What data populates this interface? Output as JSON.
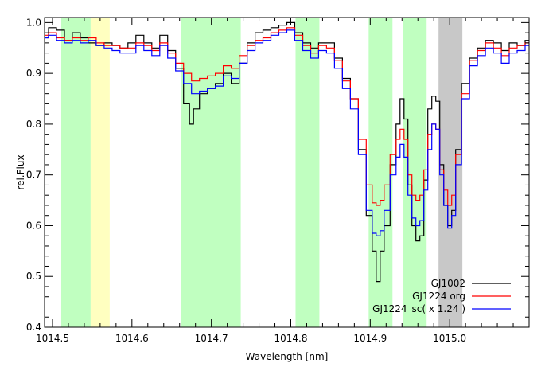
{
  "chart_data": {
    "type": "line",
    "xlabel": "Wavelength [nm]",
    "ylabel": "rel.Flux",
    "xlim": [
      1014.49,
      1015.1
    ],
    "ylim": [
      0.4,
      1.01
    ],
    "xticks": [
      1014.5,
      1014.6,
      1014.7,
      1014.8,
      1014.9,
      1015.0
    ],
    "xtick_labels": [
      "1014.5",
      "1014.6",
      "1014.7",
      "1014.8",
      "1014.9",
      "1015.0"
    ],
    "yticks": [
      0.4,
      0.5,
      0.6,
      0.7,
      0.8,
      0.9,
      1.0
    ],
    "ytick_labels": [
      "0.4",
      "0.5",
      "0.6",
      "0.7",
      "0.8",
      "0.9",
      "1.0"
    ],
    "grid": false,
    "legend_position": "bottom-right",
    "bands": [
      {
        "x0": 1014.511,
        "x1": 1014.548,
        "color": "#c0ffc0"
      },
      {
        "x0": 1014.548,
        "x1": 1014.572,
        "color": "#ffffc0"
      },
      {
        "x0": 1014.662,
        "x1": 1014.737,
        "color": "#c0ffc0"
      },
      {
        "x0": 1014.806,
        "x1": 1014.836,
        "color": "#c0ffc0"
      },
      {
        "x0": 1014.898,
        "x1": 1014.928,
        "color": "#c0ffc0"
      },
      {
        "x0": 1014.941,
        "x1": 1014.971,
        "color": "#c0ffc0"
      },
      {
        "x0": 1014.986,
        "x1": 1015.016,
        "color": "#c8c8c8"
      }
    ],
    "series": [
      {
        "name": "GJ1002",
        "color": "#000000",
        "points": [
          [
            1014.49,
            0.97
          ],
          [
            1014.5,
            0.99
          ],
          [
            1014.51,
            0.985
          ],
          [
            1014.52,
            0.965
          ],
          [
            1014.53,
            0.98
          ],
          [
            1014.54,
            0.97
          ],
          [
            1014.55,
            0.96
          ],
          [
            1014.56,
            0.955
          ],
          [
            1014.57,
            0.96
          ],
          [
            1014.58,
            0.955
          ],
          [
            1014.59,
            0.95
          ],
          [
            1014.6,
            0.96
          ],
          [
            1014.61,
            0.975
          ],
          [
            1014.62,
            0.96
          ],
          [
            1014.63,
            0.95
          ],
          [
            1014.64,
            0.975
          ],
          [
            1014.65,
            0.945
          ],
          [
            1014.66,
            0.91
          ],
          [
            1014.67,
            0.84
          ],
          [
            1014.675,
            0.8
          ],
          [
            1014.68,
            0.83
          ],
          [
            1014.69,
            0.86
          ],
          [
            1014.7,
            0.87
          ],
          [
            1014.71,
            0.88
          ],
          [
            1014.72,
            0.9
          ],
          [
            1014.73,
            0.88
          ],
          [
            1014.74,
            0.92
          ],
          [
            1014.75,
            0.96
          ],
          [
            1014.76,
            0.98
          ],
          [
            1014.77,
            0.985
          ],
          [
            1014.78,
            0.99
          ],
          [
            1014.79,
            0.995
          ],
          [
            1014.8,
            1.0
          ],
          [
            1014.81,
            0.98
          ],
          [
            1014.82,
            0.96
          ],
          [
            1014.83,
            0.95
          ],
          [
            1014.84,
            0.96
          ],
          [
            1014.85,
            0.96
          ],
          [
            1014.86,
            0.93
          ],
          [
            1014.87,
            0.89
          ],
          [
            1014.88,
            0.85
          ],
          [
            1014.89,
            0.75
          ],
          [
            1014.9,
            0.62
          ],
          [
            1014.905,
            0.55
          ],
          [
            1014.91,
            0.49
          ],
          [
            1014.915,
            0.55
          ],
          [
            1014.92,
            0.6
          ],
          [
            1014.93,
            0.72
          ],
          [
            1014.935,
            0.8
          ],
          [
            1014.94,
            0.85
          ],
          [
            1014.945,
            0.81
          ],
          [
            1014.95,
            0.68
          ],
          [
            1014.955,
            0.6
          ],
          [
            1014.96,
            0.57
          ],
          [
            1014.965,
            0.58
          ],
          [
            1014.97,
            0.69
          ],
          [
            1014.975,
            0.83
          ],
          [
            1014.98,
            0.855
          ],
          [
            1014.985,
            0.845
          ],
          [
            1014.99,
            0.72
          ],
          [
            1014.995,
            0.64
          ],
          [
            1015.0,
            0.6
          ],
          [
            1015.005,
            0.63
          ],
          [
            1015.01,
            0.75
          ],
          [
            1015.02,
            0.88
          ],
          [
            1015.03,
            0.93
          ],
          [
            1015.04,
            0.95
          ],
          [
            1015.05,
            0.965
          ],
          [
            1015.06,
            0.96
          ],
          [
            1015.07,
            0.945
          ],
          [
            1015.08,
            0.96
          ],
          [
            1015.09,
            0.955
          ],
          [
            1015.1,
            0.965
          ]
        ]
      },
      {
        "name": "GJ1224 org",
        "color": "#ff0000",
        "points": [
          [
            1014.49,
            0.975
          ],
          [
            1014.5,
            0.98
          ],
          [
            1014.51,
            0.97
          ],
          [
            1014.52,
            0.965
          ],
          [
            1014.53,
            0.97
          ],
          [
            1014.54,
            0.965
          ],
          [
            1014.55,
            0.97
          ],
          [
            1014.56,
            0.96
          ],
          [
            1014.57,
            0.955
          ],
          [
            1014.58,
            0.955
          ],
          [
            1014.59,
            0.95
          ],
          [
            1014.6,
            0.95
          ],
          [
            1014.61,
            0.96
          ],
          [
            1014.62,
            0.955
          ],
          [
            1014.63,
            0.945
          ],
          [
            1014.64,
            0.96
          ],
          [
            1014.65,
            0.94
          ],
          [
            1014.66,
            0.92
          ],
          [
            1014.67,
            0.9
          ],
          [
            1014.68,
            0.885
          ],
          [
            1014.69,
            0.89
          ],
          [
            1014.7,
            0.895
          ],
          [
            1014.71,
            0.9
          ],
          [
            1014.72,
            0.915
          ],
          [
            1014.73,
            0.91
          ],
          [
            1014.74,
            0.935
          ],
          [
            1014.75,
            0.955
          ],
          [
            1014.76,
            0.965
          ],
          [
            1014.77,
            0.97
          ],
          [
            1014.78,
            0.98
          ],
          [
            1014.79,
            0.985
          ],
          [
            1014.8,
            0.99
          ],
          [
            1014.81,
            0.975
          ],
          [
            1014.82,
            0.955
          ],
          [
            1014.83,
            0.94
          ],
          [
            1014.84,
            0.955
          ],
          [
            1014.85,
            0.95
          ],
          [
            1014.86,
            0.925
          ],
          [
            1014.87,
            0.885
          ],
          [
            1014.88,
            0.85
          ],
          [
            1014.89,
            0.77
          ],
          [
            1014.9,
            0.68
          ],
          [
            1014.905,
            0.645
          ],
          [
            1014.91,
            0.64
          ],
          [
            1014.915,
            0.65
          ],
          [
            1014.92,
            0.68
          ],
          [
            1014.93,
            0.74
          ],
          [
            1014.935,
            0.77
          ],
          [
            1014.94,
            0.79
          ],
          [
            1014.945,
            0.77
          ],
          [
            1014.95,
            0.7
          ],
          [
            1014.955,
            0.66
          ],
          [
            1014.96,
            0.65
          ],
          [
            1014.965,
            0.66
          ],
          [
            1014.97,
            0.71
          ],
          [
            1014.975,
            0.78
          ],
          [
            1014.98,
            0.8
          ],
          [
            1014.985,
            0.79
          ],
          [
            1014.99,
            0.71
          ],
          [
            1014.995,
            0.67
          ],
          [
            1015.0,
            0.64
          ],
          [
            1015.005,
            0.66
          ],
          [
            1015.01,
            0.74
          ],
          [
            1015.02,
            0.86
          ],
          [
            1015.03,
            0.925
          ],
          [
            1015.04,
            0.945
          ],
          [
            1015.05,
            0.96
          ],
          [
            1015.06,
            0.95
          ],
          [
            1015.07,
            0.935
          ],
          [
            1015.08,
            0.95
          ],
          [
            1015.09,
            0.955
          ],
          [
            1015.1,
            0.96
          ]
        ]
      },
      {
        "name": "GJ1224_sc( x 1.24 )",
        "color": "#0000ff",
        "points": [
          [
            1014.49,
            0.97
          ],
          [
            1014.5,
            0.975
          ],
          [
            1014.51,
            0.965
          ],
          [
            1014.52,
            0.96
          ],
          [
            1014.53,
            0.965
          ],
          [
            1014.54,
            0.96
          ],
          [
            1014.55,
            0.965
          ],
          [
            1014.56,
            0.955
          ],
          [
            1014.57,
            0.95
          ],
          [
            1014.58,
            0.945
          ],
          [
            1014.59,
            0.94
          ],
          [
            1014.6,
            0.94
          ],
          [
            1014.61,
            0.955
          ],
          [
            1014.62,
            0.945
          ],
          [
            1014.63,
            0.935
          ],
          [
            1014.64,
            0.955
          ],
          [
            1014.65,
            0.93
          ],
          [
            1014.66,
            0.905
          ],
          [
            1014.67,
            0.88
          ],
          [
            1014.68,
            0.86
          ],
          [
            1014.69,
            0.865
          ],
          [
            1014.7,
            0.87
          ],
          [
            1014.71,
            0.875
          ],
          [
            1014.72,
            0.895
          ],
          [
            1014.73,
            0.89
          ],
          [
            1014.74,
            0.92
          ],
          [
            1014.75,
            0.945
          ],
          [
            1014.76,
            0.96
          ],
          [
            1014.77,
            0.965
          ],
          [
            1014.78,
            0.975
          ],
          [
            1014.79,
            0.98
          ],
          [
            1014.8,
            0.985
          ],
          [
            1014.81,
            0.965
          ],
          [
            1014.82,
            0.945
          ],
          [
            1014.83,
            0.93
          ],
          [
            1014.84,
            0.945
          ],
          [
            1014.85,
            0.94
          ],
          [
            1014.86,
            0.91
          ],
          [
            1014.87,
            0.87
          ],
          [
            1014.88,
            0.83
          ],
          [
            1014.89,
            0.74
          ],
          [
            1014.9,
            0.63
          ],
          [
            1014.905,
            0.585
          ],
          [
            1014.91,
            0.58
          ],
          [
            1014.915,
            0.59
          ],
          [
            1014.92,
            0.63
          ],
          [
            1014.93,
            0.7
          ],
          [
            1014.935,
            0.735
          ],
          [
            1014.94,
            0.76
          ],
          [
            1014.945,
            0.735
          ],
          [
            1014.95,
            0.66
          ],
          [
            1014.955,
            0.615
          ],
          [
            1014.96,
            0.6
          ],
          [
            1014.965,
            0.61
          ],
          [
            1014.97,
            0.67
          ],
          [
            1014.975,
            0.75
          ],
          [
            1014.98,
            0.8
          ],
          [
            1014.985,
            0.79
          ],
          [
            1014.99,
            0.7
          ],
          [
            1014.995,
            0.64
          ],
          [
            1015.0,
            0.595
          ],
          [
            1015.005,
            0.62
          ],
          [
            1015.01,
            0.72
          ],
          [
            1015.02,
            0.85
          ],
          [
            1015.03,
            0.915
          ],
          [
            1015.04,
            0.935
          ],
          [
            1015.05,
            0.95
          ],
          [
            1015.06,
            0.94
          ],
          [
            1015.07,
            0.92
          ],
          [
            1015.08,
            0.94
          ],
          [
            1015.09,
            0.945
          ],
          [
            1015.1,
            0.955
          ]
        ]
      }
    ]
  }
}
